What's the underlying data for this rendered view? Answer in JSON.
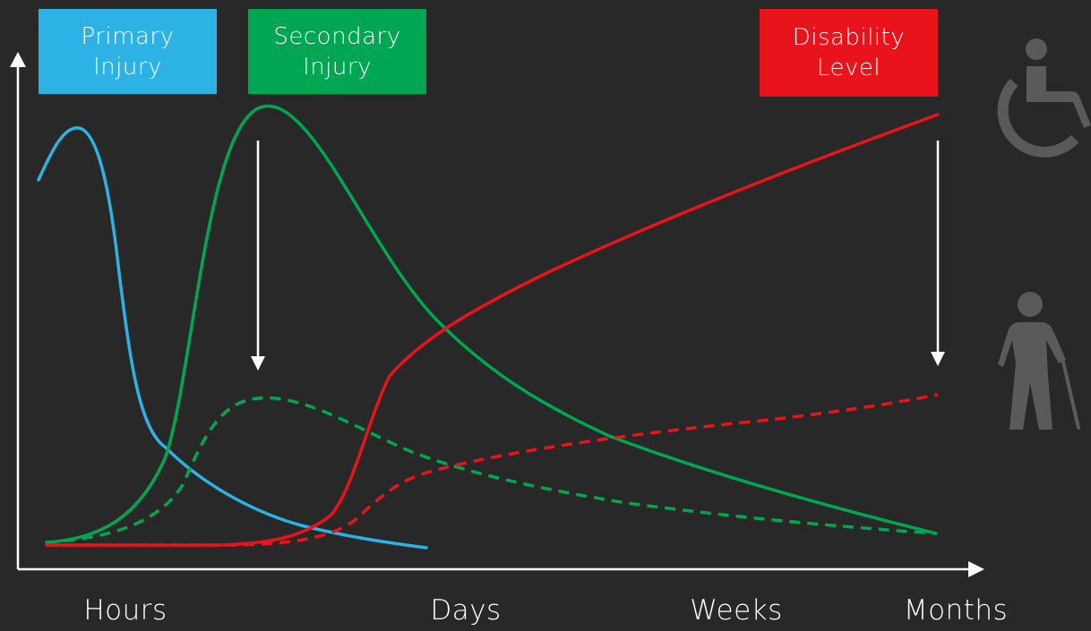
{
  "legend": {
    "primary": {
      "line1": "Primary",
      "line2": "Injury",
      "color": "#2db2e6"
    },
    "secondary": {
      "line1": "Secondary",
      "line2": "Injury",
      "color": "#00a651"
    },
    "disability": {
      "line1": "Disability",
      "line2": "Level",
      "color": "#e8131b"
    }
  },
  "x_ticks": [
    "Hours",
    "Days",
    "Weeks",
    "Months"
  ],
  "colors": {
    "background": "#282828",
    "axis": "#ffffff",
    "icon": "#5a5a5a"
  },
  "icons": [
    "wheelchair-icon",
    "walking-cane-icon"
  ]
}
